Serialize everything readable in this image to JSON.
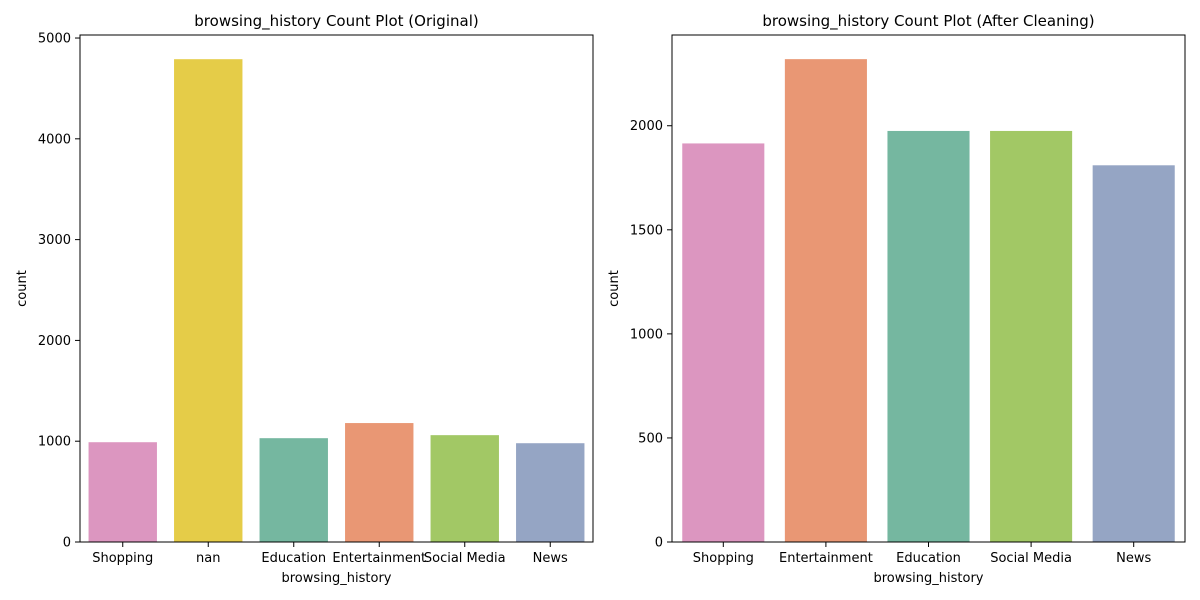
{
  "chart_data": [
    {
      "type": "bar",
      "title": "browsing_history Count Plot (Original)",
      "xlabel": "browsing_history",
      "ylabel": "count",
      "categories": [
        "Shopping",
        "nan",
        "Education",
        "Entertainment",
        "Social Media",
        "News"
      ],
      "values": [
        990,
        4790,
        1030,
        1180,
        1060,
        980
      ],
      "colors": [
        "#dc96c0",
        "#e5cc48",
        "#75b7a0",
        "#e99774",
        "#a2c865",
        "#95a5c4"
      ],
      "yticks": [
        0,
        1000,
        2000,
        3000,
        4000,
        5000
      ],
      "ylim": [
        0,
        5030
      ],
      "grid": false
    },
    {
      "type": "bar",
      "title": "browsing_history Count Plot (After Cleaning)",
      "xlabel": "browsing_history",
      "ylabel": "count",
      "categories": [
        "Shopping",
        "Entertainment",
        "Education",
        "Social Media",
        "News"
      ],
      "values": [
        1915,
        2320,
        1975,
        1975,
        1810
      ],
      "colors": [
        "#dc96c0",
        "#e99774",
        "#75b7a0",
        "#a2c865",
        "#95a5c4"
      ],
      "yticks": [
        0,
        500,
        1000,
        1500,
        2000
      ],
      "ylim": [
        0,
        2436
      ],
      "grid": false
    }
  ]
}
